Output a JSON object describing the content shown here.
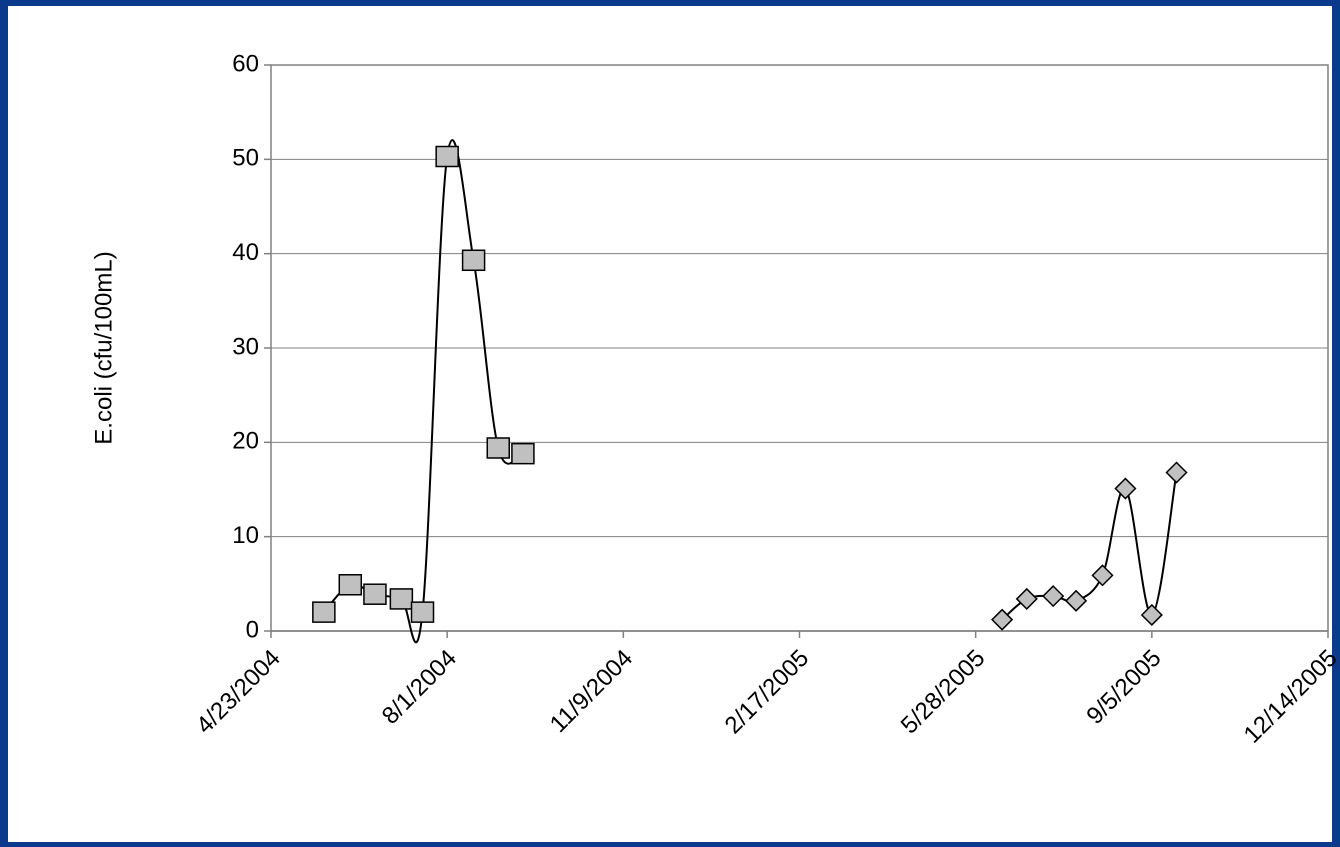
{
  "chart_data": {
    "type": "scatter",
    "y_label": "E.coli (cfu/100mL)",
    "xlim": [
      "4/23/2004",
      "12/14/2005"
    ],
    "xticks": [
      "4/23/2004",
      "8/1/2004",
      "11/9/2004",
      "2/17/2005",
      "5/28/2005",
      "9/5/2005",
      "12/14/2005"
    ],
    "ylim": [
      0,
      60
    ],
    "yticks": [
      0,
      10,
      20,
      30,
      40,
      50,
      60
    ],
    "grid": true,
    "smooth": true,
    "line_color": "#000000",
    "series": [
      {
        "color": "#c0c0c0",
        "marker": "square",
        "x": [
          "5/23/2004",
          "6/7/2004",
          "6/21/2004",
          "7/6/2004",
          "7/18/2004",
          "8/1/2004",
          "8/16/2004",
          "8/30/2004",
          "9/13/2004"
        ],
        "values": [
          2,
          4.9,
          3.9,
          3.4,
          2,
          50.3,
          39.3,
          19.4,
          18.8
        ]
      },
      {
        "color": "#c0c0c0",
        "marker": "diamond",
        "x": [
          "6/12/2005",
          "6/26/2005",
          "7/11/2005",
          "7/24/2005",
          "8/8/2005",
          "8/21/2005",
          "9/5/2005",
          "9/19/2005"
        ],
        "values": [
          1.2,
          3.4,
          3.7,
          3.2,
          5.9,
          15.1,
          1.7,
          16.8
        ]
      }
    ]
  }
}
